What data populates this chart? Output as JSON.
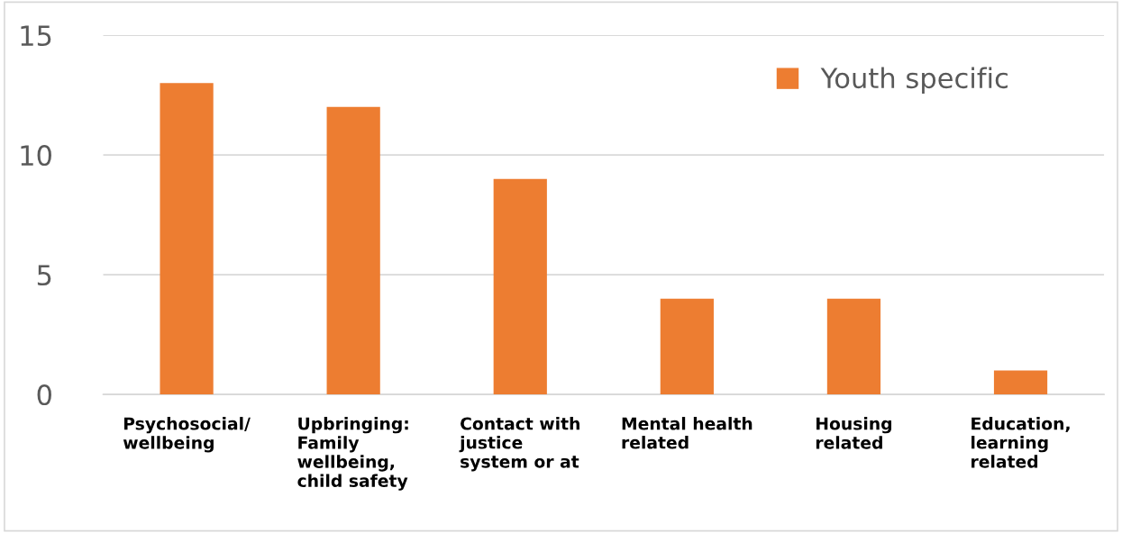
{
  "chart_data": {
    "type": "bar",
    "categories": [
      "Psychosocial/\nwellbeing",
      "Upbringing:\nFamily\nwellbeing,\nchild safety",
      "Contact with\njustice\nsystem or at",
      "Mental health\nrelated",
      "Housing\nrelated",
      "Education,\nlearning\nrelated"
    ],
    "series": [
      {
        "name": "Youth specific",
        "color": "#ed7d31",
        "values": [
          13,
          12,
          9,
          4,
          4,
          1
        ]
      }
    ],
    "ylim": [
      0,
      15
    ],
    "yticks": [
      0,
      5,
      10,
      15
    ],
    "grid": "y",
    "legend": "top right"
  }
}
